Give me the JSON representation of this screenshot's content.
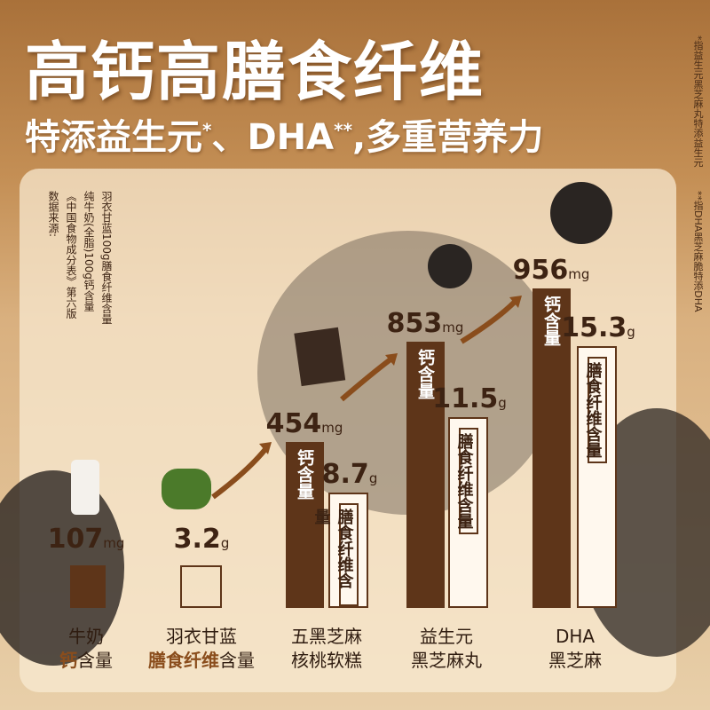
{
  "header": {
    "title": "高钙高膳食纤维",
    "subtitle": {
      "part1": "特添益生元",
      "mark1": "*",
      "part2": "、DHA",
      "mark2": "**",
      "part3": ",多重营养力"
    }
  },
  "side_notes": [
    "*指益生元黑芝麻丸特添益生元",
    "**指DHA黑芝麻脆特添DHA"
  ],
  "source_note": [
    "数据来源:",
    "《中国食物成分表》第六版",
    "纯牛奶(全脂)100g钙含量",
    "羽衣甘蓝100g膳食纤维含量"
  ],
  "references": [
    {
      "value": "107",
      "unit": "mg",
      "name": "牛奶",
      "highlight": "钙",
      "suffix": "含量"
    },
    {
      "value": "3.2",
      "unit": "g",
      "name": "羽衣甘蓝",
      "highlight": "膳食纤维",
      "suffix": "含量"
    }
  ],
  "bar_labels": {
    "calcium": "钙含量",
    "fiber": "膳食纤维含量"
  },
  "products": [
    {
      "name": [
        "五黑芝麻",
        "核桃软糕"
      ],
      "calcium": "454",
      "calcium_unit": "mg",
      "fiber": "8.7",
      "fiber_unit": "g"
    },
    {
      "name": [
        "益生元",
        "黑芝麻丸"
      ],
      "calcium": "853",
      "calcium_unit": "mg",
      "fiber": "11.5",
      "fiber_unit": "g"
    },
    {
      "name": [
        "DHA",
        "黑芝麻"
      ],
      "calcium": "956",
      "calcium_unit": "mg",
      "fiber": "15.3",
      "fiber_unit": "g"
    }
  ]
}
